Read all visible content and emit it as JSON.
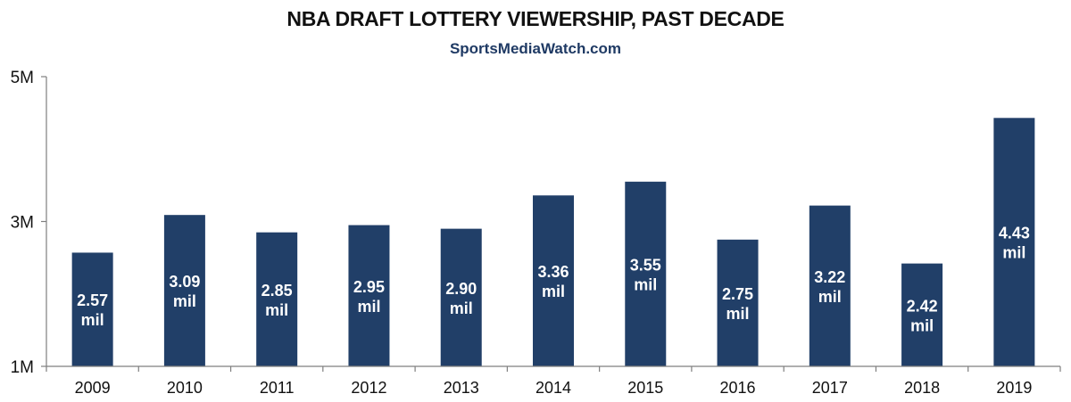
{
  "header": {
    "title": "NBA DRAFT LOTTERY VIEWERSHIP, PAST DECADE",
    "subtitle": "SportsMediaWatch.com"
  },
  "colors": {
    "bar": "#213f68",
    "axis": "#7f7f7f",
    "subtitle": "#1f3a64"
  },
  "chart_data": {
    "type": "bar",
    "title": "NBA DRAFT LOTTERY VIEWERSHIP, PAST DECADE",
    "subtitle": "SportsMediaWatch.com",
    "xlabel": "",
    "ylabel": "",
    "ylim": [
      1,
      5
    ],
    "yticks": [
      {
        "value": 1,
        "label": "1M"
      },
      {
        "value": 3,
        "label": "3M"
      },
      {
        "value": 5,
        "label": "5M"
      }
    ],
    "grid": false,
    "categories": [
      "2009",
      "2010",
      "2011",
      "2012",
      "2013",
      "2014",
      "2015",
      "2016",
      "2017",
      "2018",
      "2019"
    ],
    "values": [
      2.57,
      3.09,
      2.85,
      2.95,
      2.9,
      3.36,
      3.55,
      2.75,
      3.22,
      2.42,
      4.43
    ],
    "value_labels": [
      "2.57",
      "3.09",
      "2.85",
      "2.95",
      "2.90",
      "3.36",
      "3.55",
      "2.75",
      "3.22",
      "2.42",
      "4.43"
    ],
    "value_unit": "mil"
  }
}
